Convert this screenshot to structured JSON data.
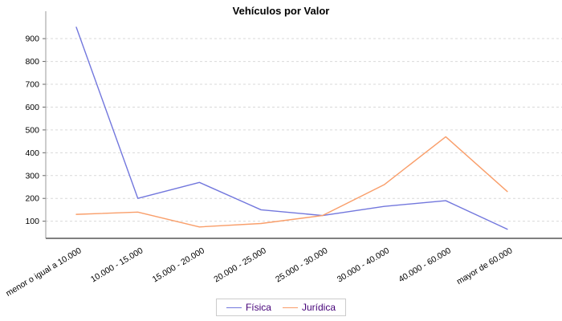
{
  "title": "Vehículos por Valor",
  "chart_data": {
    "type": "line",
    "title": "Vehículos por Valor",
    "categories": [
      "menor o igual a 10.000",
      "10.000 - 15.000",
      "15.000 - 20.000",
      "20.000 - 25.000",
      "25.000 - 30.000",
      "30.000 - 40.000",
      "40.000 - 60.000",
      "mayor de 60.000"
    ],
    "series": [
      {
        "name": "Física",
        "color": "#7277dd",
        "values": [
          950,
          200,
          270,
          150,
          125,
          165,
          190,
          65
        ]
      },
      {
        "name": "Jurídica",
        "color": "#f99e6a",
        "values": [
          130,
          140,
          75,
          90,
          125,
          260,
          470,
          230
        ]
      }
    ],
    "xlabel": "",
    "ylabel": "",
    "y_ticks": [
      100,
      200,
      300,
      400,
      500,
      600,
      700,
      800,
      900
    ],
    "ylim": [
      20,
      1000
    ],
    "grid": "horizontal-dashed",
    "legend_position": "bottom-center"
  },
  "style": {
    "grid_color": "#d9d9d9",
    "axis_color": "#808080",
    "tick_label_color": "#000000",
    "legend_text_color": "#440077",
    "background": "#ffffff"
  }
}
